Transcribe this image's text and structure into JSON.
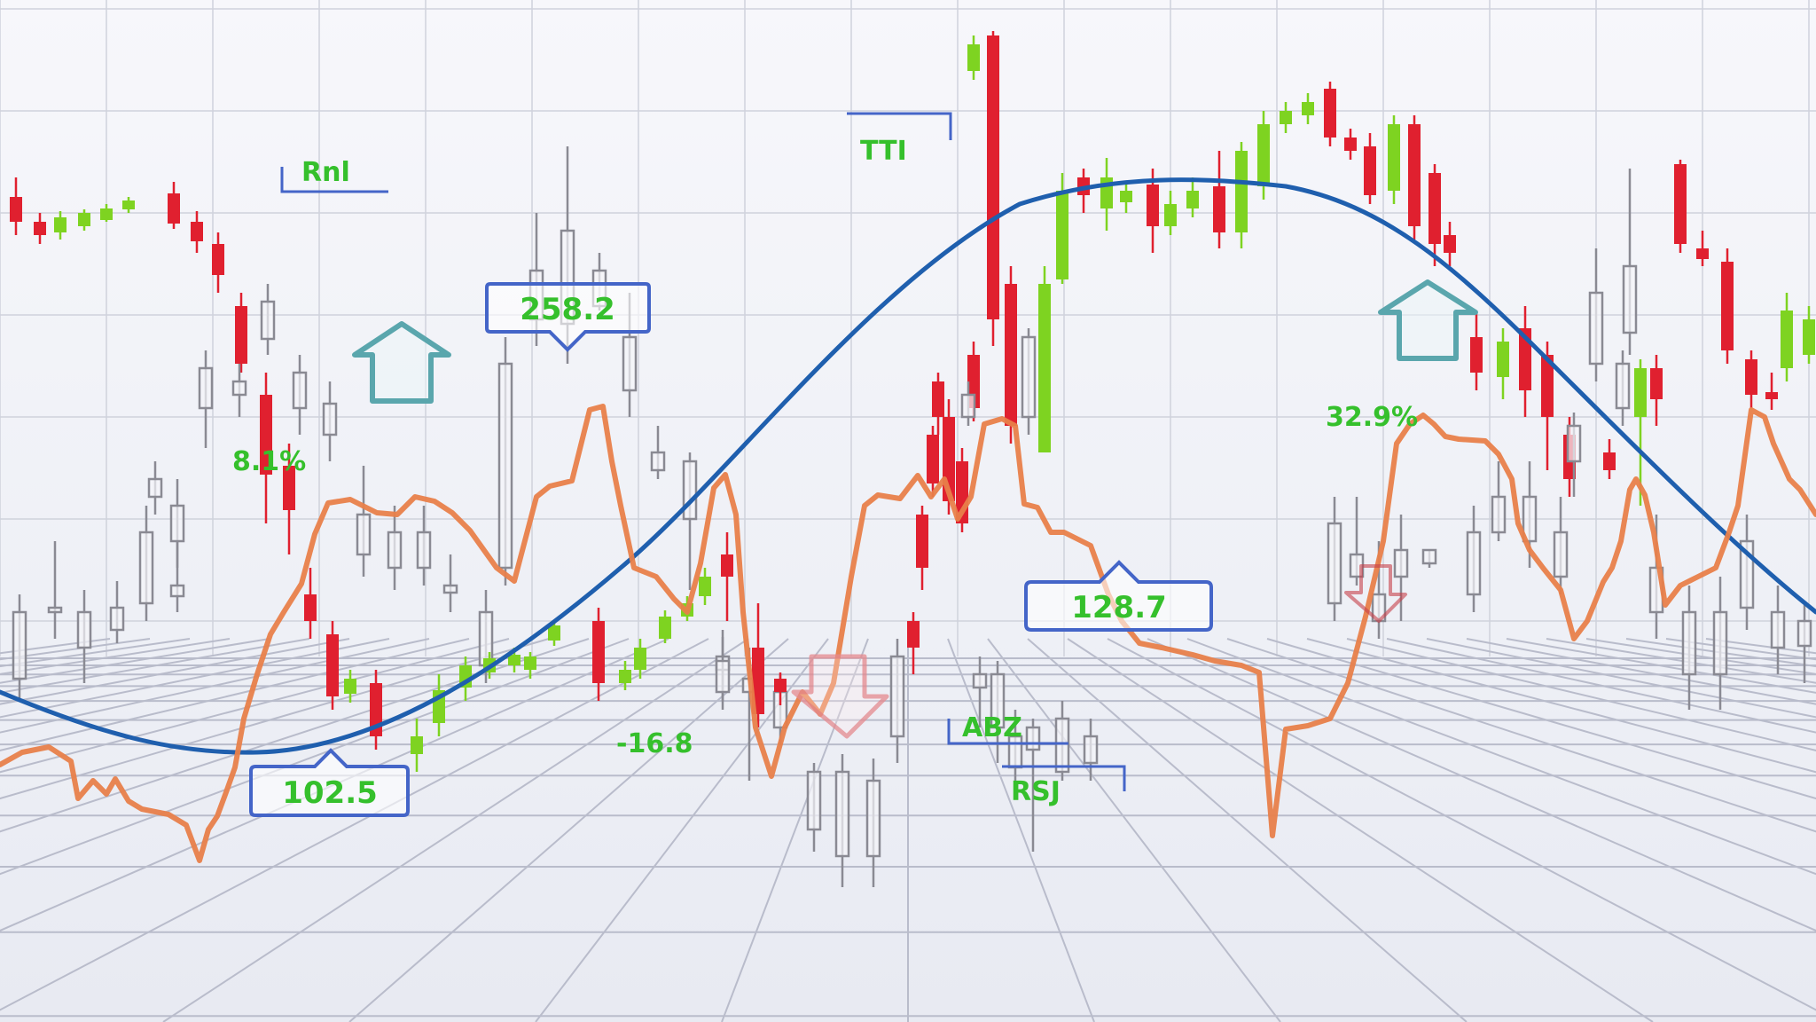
{
  "scene": {
    "description_free": true,
    "background_color": "#f3f4f9",
    "grid_color": "#c9ccd8",
    "colors": {
      "bull": "#7ed321",
      "bear": "#e0202f",
      "neutral": "#6f6f78",
      "smooth_curve": "#1f5fae",
      "orange_line": "#e8804a",
      "label_text": "#35c02c",
      "badge_border": "#4465c8",
      "badge_text": "#35c02c",
      "up_arrow": "#5aa6ad",
      "down_arrow": "#e58a8f",
      "bracket": "#4465c8"
    }
  },
  "labels": {
    "rnl": "Rnl",
    "tti": "TTI",
    "abz": "ABZ",
    "rsj": "RSJ",
    "pct_left": "8.1%",
    "pct_right": "32.9%",
    "neg_value": "-16.8"
  },
  "badges": {
    "b1": "258.2",
    "b2": "102.5",
    "b3": "128.7"
  },
  "icons": {
    "up_arrow_left": "up-arrow-icon",
    "up_arrow_right": "up-arrow-icon",
    "down_arrow_mid": "down-arrow-icon",
    "down_arrow_right": "down-arrow-icon"
  }
}
